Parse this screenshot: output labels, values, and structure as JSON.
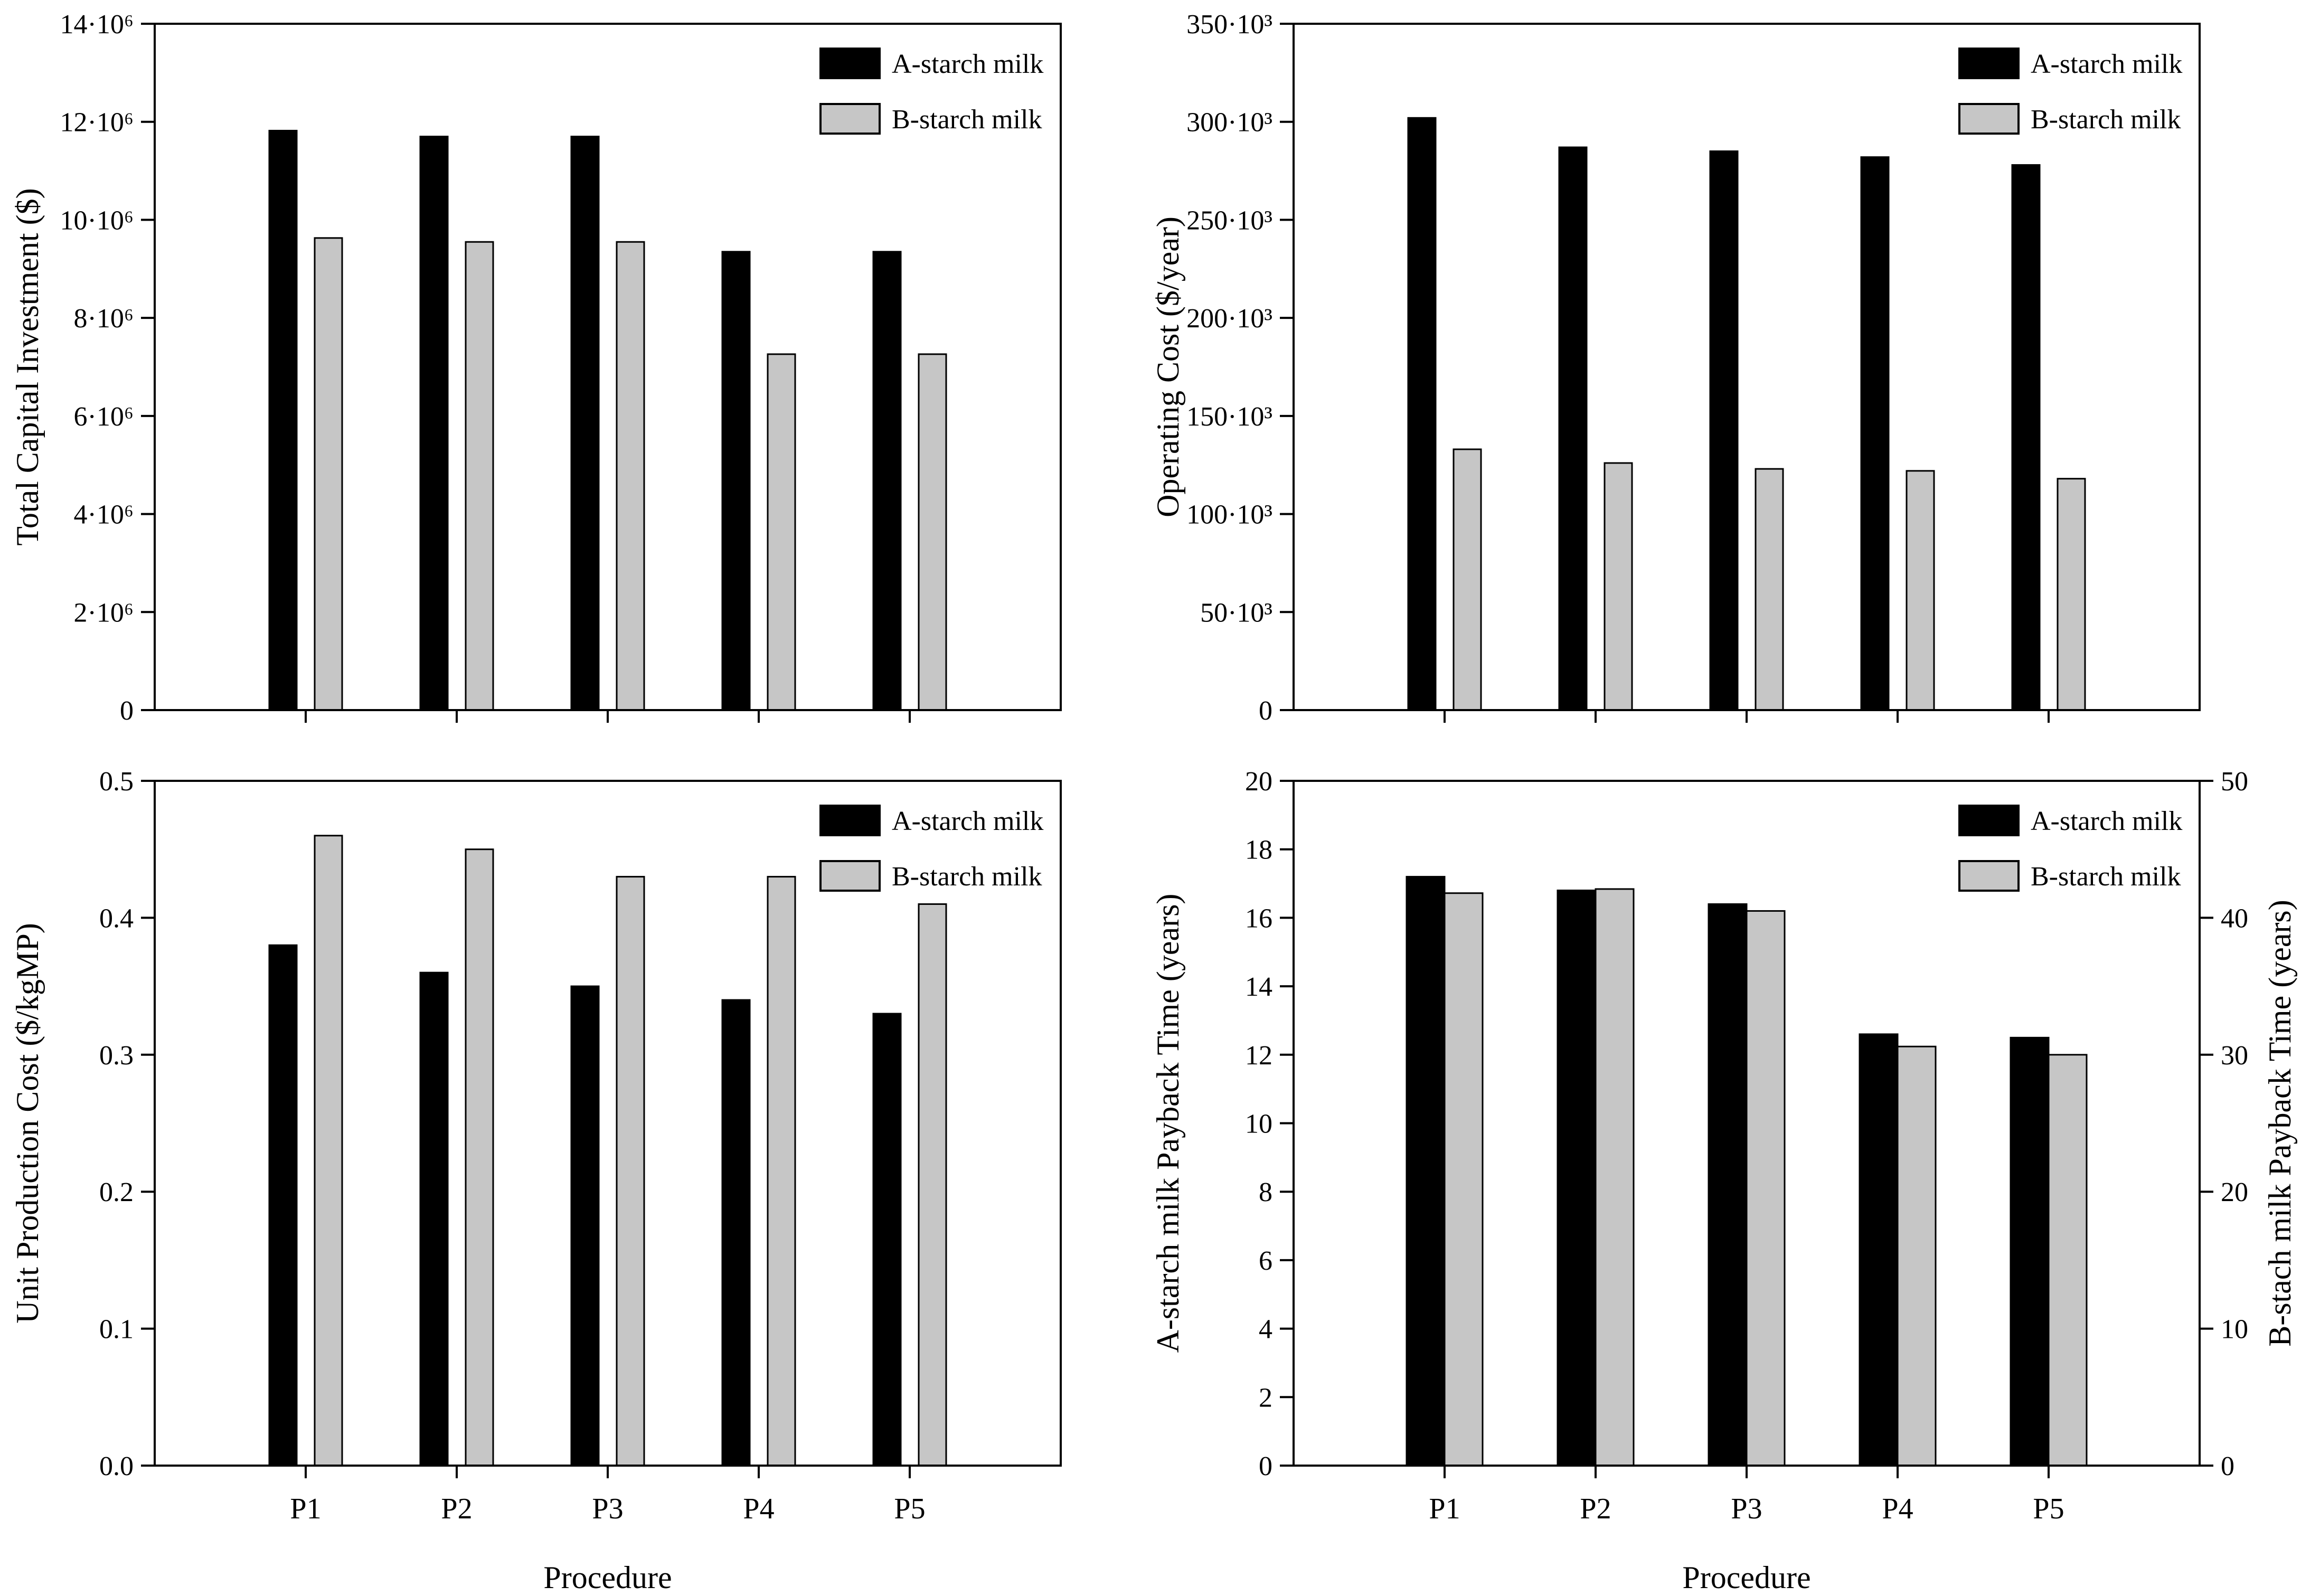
{
  "figure": {
    "background": "#ffffff",
    "axis_color": "#000000",
    "legend": {
      "a_label": "A-starch milk",
      "b_label": "B-starch milk",
      "a_color": "#000000",
      "b_color": "#c6c6c6"
    },
    "x_axis_title": "Procedure",
    "categories": [
      "P1",
      "P2",
      "P3",
      "P4",
      "P5"
    ]
  },
  "chart_data": [
    {
      "id": "total-capital-investment",
      "type": "bar",
      "position": "top-left",
      "title": "",
      "xlabel": "",
      "ylabel": "Total Capital Investment ($)",
      "categories": [
        "P1",
        "P2",
        "P3",
        "P4",
        "P5"
      ],
      "x_tick_labels_shown": false,
      "grid": false,
      "legend_position": "top-right",
      "ylim": [
        0,
        14000000
      ],
      "yticks": [
        0,
        2000000,
        4000000,
        6000000,
        8000000,
        10000000,
        12000000,
        14000000
      ],
      "ytick_labels": [
        "0",
        "2·10⁶",
        "4·10⁶",
        "6·10⁶",
        "8·10⁶",
        "10·10⁶",
        "12·10⁶",
        "14·10⁶"
      ],
      "series": [
        {
          "name": "A-starch milk",
          "color": "#000000",
          "values": [
            11820000,
            11700000,
            11700000,
            9350000,
            9350000
          ]
        },
        {
          "name": "B-starch milk",
          "color": "#c6c6c6",
          "values": [
            9630000,
            9550000,
            9550000,
            7260000,
            7260000
          ]
        }
      ]
    },
    {
      "id": "operating-cost",
      "type": "bar",
      "position": "top-right",
      "title": "",
      "xlabel": "",
      "ylabel": "Operating Cost ($/year)",
      "categories": [
        "P1",
        "P2",
        "P3",
        "P4",
        "P5"
      ],
      "x_tick_labels_shown": false,
      "grid": false,
      "legend_position": "top-right",
      "ylim": [
        0,
        350000
      ],
      "yticks": [
        0,
        50000,
        100000,
        150000,
        200000,
        250000,
        300000,
        350000
      ],
      "ytick_labels": [
        "0",
        "50·10³",
        "100·10³",
        "150·10³",
        "200·10³",
        "250·10³",
        "300·10³",
        "350·10³"
      ],
      "series": [
        {
          "name": "A-starch milk",
          "color": "#000000",
          "values": [
            302000,
            287000,
            285000,
            282000,
            278000
          ]
        },
        {
          "name": "B-starch milk",
          "color": "#c6c6c6",
          "values": [
            133000,
            126000,
            123000,
            122000,
            118000
          ]
        }
      ]
    },
    {
      "id": "unit-production-cost",
      "type": "bar",
      "position": "bottom-left",
      "title": "",
      "xlabel": "Procedure",
      "ylabel": "Unit Production Cost ($/kgMP)",
      "categories": [
        "P1",
        "P2",
        "P3",
        "P4",
        "P5"
      ],
      "x_tick_labels_shown": true,
      "grid": false,
      "legend_position": "top-right",
      "ylim": [
        0,
        0.5
      ],
      "yticks": [
        0,
        0.1,
        0.2,
        0.3,
        0.4,
        0.5
      ],
      "ytick_labels": [
        "0.0",
        "0.1",
        "0.2",
        "0.3",
        "0.4",
        "0.5"
      ],
      "series": [
        {
          "name": "A-starch milk",
          "color": "#000000",
          "values": [
            0.38,
            0.36,
            0.35,
            0.34,
            0.33
          ]
        },
        {
          "name": "B-starch milk",
          "color": "#c6c6c6",
          "values": [
            0.46,
            0.45,
            0.43,
            0.43,
            0.41
          ]
        }
      ]
    },
    {
      "id": "payback-time",
      "type": "bar-dual",
      "position": "bottom-right",
      "title": "",
      "xlabel": "Procedure",
      "ylabel_left": "A-starch milk Payback Time (years)",
      "ylabel_right": "B-stach milk Payback Time (years)",
      "categories": [
        "P1",
        "P2",
        "P3",
        "P4",
        "P5"
      ],
      "x_tick_labels_shown": true,
      "grid": false,
      "legend_position": "top-right",
      "ylim_left": [
        0,
        20
      ],
      "yticks_left": [
        0,
        2,
        4,
        6,
        8,
        10,
        12,
        14,
        16,
        18,
        20
      ],
      "ytick_labels_left": [
        "0",
        "2",
        "4",
        "6",
        "8",
        "10",
        "12",
        "14",
        "16",
        "18",
        "20"
      ],
      "ylim_right": [
        0,
        50
      ],
      "yticks_right": [
        0,
        10,
        20,
        30,
        40,
        50
      ],
      "ytick_labels_right": [
        "0",
        "10",
        "20",
        "30",
        "40",
        "50"
      ],
      "series": [
        {
          "name": "A-starch milk",
          "color": "#000000",
          "axis": "left",
          "values": [
            17.2,
            16.8,
            16.4,
            12.6,
            12.5
          ]
        },
        {
          "name": "B-starch milk",
          "color": "#c6c6c6",
          "axis": "right",
          "values": [
            41.8,
            42.1,
            40.5,
            30.6,
            30.0
          ]
        }
      ]
    }
  ]
}
